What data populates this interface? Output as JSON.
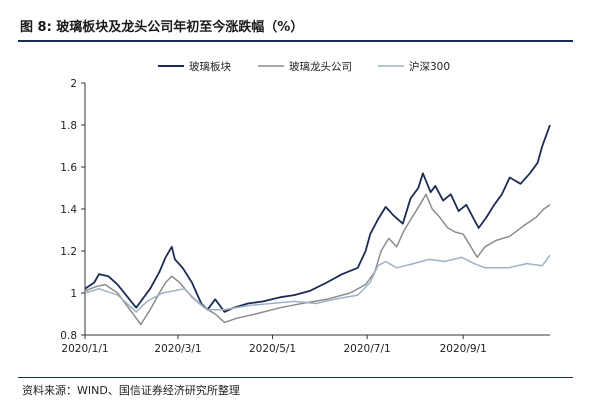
{
  "figure": {
    "title": "图 8:  玻璃板块及龙头公司年初至今涨跌幅（%）",
    "source": "资料来源：WIND、国信证券经济研究所整理"
  },
  "colors": {
    "series1": "#1b2c54",
    "series2": "#8c8c8c",
    "series3": "#9fb1c6",
    "rule": "#1b2c54"
  },
  "chart_data": {
    "type": "line",
    "title": "",
    "xlabel": "",
    "ylabel": "",
    "ylim": [
      0.8,
      2.0
    ],
    "yticks": [
      "2",
      "1.8",
      "1.6",
      "1.4",
      "1.2",
      "1",
      "0.8"
    ],
    "ytick_values": [
      2.0,
      1.8,
      1.6,
      1.4,
      1.2,
      1.0,
      0.8
    ],
    "xlim": [
      "2020-01-01",
      "2020-10-27"
    ],
    "xticks": [
      "2020/1/1",
      "2020/3/1",
      "2020/5/1",
      "2020/7/1",
      "2020/9/1"
    ],
    "xtick_dates": [
      "2020-01-01",
      "2020-03-01",
      "2020-05-01",
      "2020-07-01",
      "2020-09-01"
    ],
    "grid": false,
    "legend": "top-center",
    "series": [
      {
        "name": "玻璃板块",
        "color": "#1b2c54",
        "points": [
          [
            "2020-01-01",
            1.02
          ],
          [
            "2020-01-07",
            1.05
          ],
          [
            "2020-01-10",
            1.09
          ],
          [
            "2020-01-16",
            1.08
          ],
          [
            "2020-01-22",
            1.04
          ],
          [
            "2020-02-03",
            0.93
          ],
          [
            "2020-02-06",
            0.96
          ],
          [
            "2020-02-12",
            1.02
          ],
          [
            "2020-02-18",
            1.1
          ],
          [
            "2020-02-22",
            1.17
          ],
          [
            "2020-02-26",
            1.22
          ],
          [
            "2020-02-28",
            1.16
          ],
          [
            "2020-03-04",
            1.12
          ],
          [
            "2020-03-10",
            1.05
          ],
          [
            "2020-03-16",
            0.95
          ],
          [
            "2020-03-20",
            0.92
          ],
          [
            "2020-03-25",
            0.97
          ],
          [
            "2020-03-31",
            0.91
          ],
          [
            "2020-04-06",
            0.93
          ],
          [
            "2020-04-15",
            0.95
          ],
          [
            "2020-04-25",
            0.96
          ],
          [
            "2020-05-06",
            0.98
          ],
          [
            "2020-05-15",
            0.99
          ],
          [
            "2020-05-25",
            1.01
          ],
          [
            "2020-06-05",
            1.05
          ],
          [
            "2020-06-15",
            1.09
          ],
          [
            "2020-06-25",
            1.12
          ],
          [
            "2020-06-30",
            1.2
          ],
          [
            "2020-07-03",
            1.28
          ],
          [
            "2020-07-08",
            1.35
          ],
          [
            "2020-07-13",
            1.41
          ],
          [
            "2020-07-18",
            1.37
          ],
          [
            "2020-07-24",
            1.33
          ],
          [
            "2020-07-29",
            1.45
          ],
          [
            "2020-08-03",
            1.5
          ],
          [
            "2020-08-06",
            1.57
          ],
          [
            "2020-08-11",
            1.48
          ],
          [
            "2020-08-14",
            1.51
          ],
          [
            "2020-08-19",
            1.44
          ],
          [
            "2020-08-24",
            1.47
          ],
          [
            "2020-08-29",
            1.39
          ],
          [
            "2020-09-03",
            1.42
          ],
          [
            "2020-09-08",
            1.35
          ],
          [
            "2020-09-11",
            1.31
          ],
          [
            "2020-09-16",
            1.36
          ],
          [
            "2020-09-21",
            1.42
          ],
          [
            "2020-09-26",
            1.47
          ],
          [
            "2020-10-01",
            1.55
          ],
          [
            "2020-10-08",
            1.52
          ],
          [
            "2020-10-14",
            1.57
          ],
          [
            "2020-10-19",
            1.62
          ],
          [
            "2020-10-22",
            1.7
          ],
          [
            "2020-10-27",
            1.8
          ]
        ]
      },
      {
        "name": "玻璃龙头公司",
        "color": "#8c8c8c",
        "points": [
          [
            "2020-01-01",
            1.01
          ],
          [
            "2020-01-08",
            1.03
          ],
          [
            "2020-01-14",
            1.04
          ],
          [
            "2020-01-22",
            1.0
          ],
          [
            "2020-02-03",
            0.88
          ],
          [
            "2020-02-06",
            0.85
          ],
          [
            "2020-02-12",
            0.92
          ],
          [
            "2020-02-18",
            1.0
          ],
          [
            "2020-02-22",
            1.05
          ],
          [
            "2020-02-26",
            1.08
          ],
          [
            "2020-03-02",
            1.05
          ],
          [
            "2020-03-10",
            0.98
          ],
          [
            "2020-03-18",
            0.93
          ],
          [
            "2020-03-25",
            0.9
          ],
          [
            "2020-03-31",
            0.86
          ],
          [
            "2020-04-08",
            0.88
          ],
          [
            "2020-04-20",
            0.9
          ],
          [
            "2020-05-06",
            0.93
          ],
          [
            "2020-05-20",
            0.95
          ],
          [
            "2020-06-05",
            0.97
          ],
          [
            "2020-06-20",
            1.0
          ],
          [
            "2020-06-30",
            1.04
          ],
          [
            "2020-07-06",
            1.1
          ],
          [
            "2020-07-10",
            1.2
          ],
          [
            "2020-07-15",
            1.26
          ],
          [
            "2020-07-20",
            1.22
          ],
          [
            "2020-07-25",
            1.3
          ],
          [
            "2020-07-30",
            1.36
          ],
          [
            "2020-08-04",
            1.42
          ],
          [
            "2020-08-08",
            1.47
          ],
          [
            "2020-08-12",
            1.4
          ],
          [
            "2020-08-17",
            1.36
          ],
          [
            "2020-08-22",
            1.31
          ],
          [
            "2020-08-27",
            1.29
          ],
          [
            "2020-09-01",
            1.28
          ],
          [
            "2020-09-06",
            1.22
          ],
          [
            "2020-09-10",
            1.17
          ],
          [
            "2020-09-15",
            1.22
          ],
          [
            "2020-09-22",
            1.25
          ],
          [
            "2020-10-01",
            1.27
          ],
          [
            "2020-10-10",
            1.32
          ],
          [
            "2020-10-18",
            1.36
          ],
          [
            "2020-10-23",
            1.4
          ],
          [
            "2020-10-27",
            1.42
          ]
        ]
      },
      {
        "name": "沪深300",
        "color": "#9fb1c6",
        "points": [
          [
            "2020-01-01",
            1.0
          ],
          [
            "2020-01-10",
            1.02
          ],
          [
            "2020-01-22",
            0.99
          ],
          [
            "2020-02-03",
            0.91
          ],
          [
            "2020-02-10",
            0.96
          ],
          [
            "2020-02-20",
            1.0
          ],
          [
            "2020-03-05",
            1.02
          ],
          [
            "2020-03-12",
            0.97
          ],
          [
            "2020-03-20",
            0.92
          ],
          [
            "2020-03-31",
            0.92
          ],
          [
            "2020-04-15",
            0.94
          ],
          [
            "2020-04-30",
            0.95
          ],
          [
            "2020-05-15",
            0.96
          ],
          [
            "2020-05-29",
            0.95
          ],
          [
            "2020-06-10",
            0.97
          ],
          [
            "2020-06-25",
            0.99
          ],
          [
            "2020-07-03",
            1.05
          ],
          [
            "2020-07-08",
            1.13
          ],
          [
            "2020-07-13",
            1.15
          ],
          [
            "2020-07-20",
            1.12
          ],
          [
            "2020-07-31",
            1.14
          ],
          [
            "2020-08-10",
            1.16
          ],
          [
            "2020-08-20",
            1.15
          ],
          [
            "2020-08-31",
            1.17
          ],
          [
            "2020-09-08",
            1.14
          ],
          [
            "2020-09-15",
            1.12
          ],
          [
            "2020-09-30",
            1.12
          ],
          [
            "2020-10-12",
            1.14
          ],
          [
            "2020-10-22",
            1.13
          ],
          [
            "2020-10-27",
            1.18
          ]
        ]
      }
    ]
  }
}
